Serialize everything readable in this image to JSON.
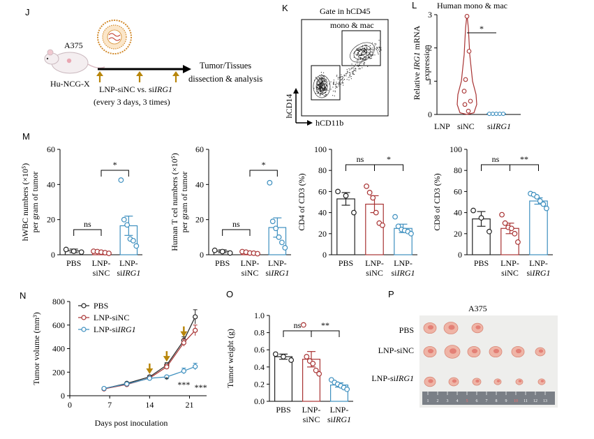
{
  "panels": {
    "J": {
      "letter": "J",
      "mouse_label": "A375",
      "strain": "Hu-NCG-X",
      "treatment": "LNP-siNC vs. siIRG1",
      "treatment_a": "LNP-siNC vs. si",
      "treatment_gene": "IRG1",
      "schedule": "(every 3 days, 3 times)",
      "outcome_1": "Tumor/Tissues",
      "outcome_2": "dissection & analysis"
    },
    "K": {
      "letter": "K",
      "title": "Gate in hCD45",
      "gate_label": "mono & mac",
      "ylabel": "hCD14",
      "xlabel": "hCD11b"
    },
    "L": {
      "letter": "L",
      "title": "Human mono & mac",
      "ylabel_1": "Relative",
      "ylabel_gene": "IRG1",
      "ylabel_2": "mRNA",
      "ylabel_3": "expression",
      "xgroup_prefix": "LNP",
      "xcat_1": "siNC",
      "xcat_2_prefix": "si",
      "xcat_2_gene": "IRG1",
      "sig": "*"
    },
    "M": {
      "letter": "M"
    },
    "N": {
      "letter": "N"
    },
    "O": {
      "letter": "O"
    },
    "P": {
      "letter": "P",
      "title": "A375",
      "row_1": "PBS",
      "row_2": "LNP-siNC",
      "row_3_prefix": "LNP-si",
      "row_3_gene": "IRG1",
      "ruler_ticks": [
        "1",
        "2",
        "3",
        "4",
        "5",
        "6",
        "7",
        "8",
        "9",
        "10",
        "11",
        "12",
        "13"
      ]
    }
  },
  "colors": {
    "pbs": "#222222",
    "sinc": "#a83232",
    "siirg1": "#3d8fbf",
    "arrow": "#b8860b"
  },
  "chart_data": [
    {
      "id": "L",
      "type": "violin",
      "categories": [
        "siNC",
        "siIRG1"
      ],
      "ylim": [
        0,
        3
      ],
      "yticks": [
        0,
        1,
        2,
        3
      ],
      "points": [
        [
          2.95,
          1.9,
          1.05,
          0.7,
          0.4,
          0.3,
          0.1
        ],
        [
          0.02,
          0.02,
          0.02,
          0.02,
          0.02
        ]
      ]
    },
    {
      "id": "M1",
      "type": "bar",
      "ylabel_1": "hWBC numbers (×10⁵)",
      "ylabel_2": "per gram of tumor",
      "categories": [
        "PBS",
        "LNP-siNC",
        "LNP-siIRG1"
      ],
      "means": [
        2.2,
        1.5,
        16.5
      ],
      "sem": [
        1.0,
        0.5,
        5.5
      ],
      "points": [
        [
          3.0,
          2.0,
          1.5
        ],
        [
          2.0,
          1.8,
          1.5,
          1.2,
          0.8
        ],
        [
          42.5,
          20.0,
          17.0,
          9.0,
          8.0,
          5.0
        ]
      ],
      "ylim": [
        0,
        60
      ],
      "yticks": [
        0,
        20,
        40,
        60
      ],
      "brackets": [
        {
          "from": 0,
          "to": 1,
          "label": "ns"
        },
        {
          "from": 1,
          "to": 2,
          "label": "*"
        }
      ]
    },
    {
      "id": "M2",
      "type": "bar",
      "ylabel_1": "Human T cel numbers (×10⁵)",
      "ylabel_2": "per gram of tumor",
      "categories": [
        "PBS",
        "LNP-siNC",
        "LNP-siIRG1"
      ],
      "means": [
        2.0,
        1.2,
        15.5
      ],
      "sem": [
        0.8,
        0.5,
        5.5
      ],
      "points": [
        [
          2.5,
          1.8,
          1.0
        ],
        [
          1.8,
          1.5,
          1.0,
          0.9,
          0.6
        ],
        [
          41.0,
          19.0,
          15.0,
          10.0,
          7.0,
          4.0
        ]
      ],
      "ylim": [
        0,
        60
      ],
      "yticks": [
        0,
        20,
        40,
        60
      ],
      "brackets": [
        {
          "from": 0,
          "to": 1,
          "label": "ns"
        },
        {
          "from": 1,
          "to": 2,
          "label": "*"
        }
      ]
    },
    {
      "id": "M3",
      "type": "bar",
      "ylabel_1": "CD4 of CD3 (%)",
      "ylabel_2": "",
      "categories": [
        "PBS",
        "LNP-siNC",
        "LNP-siIRG1"
      ],
      "means": [
        53,
        48,
        25
      ],
      "sem": [
        6,
        8,
        4
      ],
      "points": [
        [
          60,
          56,
          40
        ],
        [
          65,
          59,
          54,
          40,
          30,
          28
        ],
        [
          36,
          27,
          24,
          23,
          22,
          20
        ]
      ],
      "ylim": [
        0,
        100
      ],
      "yticks": [
        0,
        20,
        40,
        60,
        80,
        100
      ],
      "brackets": [
        {
          "from": 0,
          "to": 1,
          "label": "ns"
        },
        {
          "from": 1,
          "to": 2,
          "label": "*"
        }
      ]
    },
    {
      "id": "M4",
      "type": "bar",
      "ylabel_1": "CD8 of CD3 (%)",
      "ylabel_2": "",
      "categories": [
        "PBS",
        "LNP-siNC",
        "LNP-siIRG1"
      ],
      "means": [
        34,
        25,
        51
      ],
      "sem": [
        7,
        5,
        3
      ],
      "points": [
        [
          42,
          35,
          22
        ],
        [
          38,
          30,
          26,
          25,
          20,
          12
        ],
        [
          58,
          57,
          55,
          51,
          48,
          44
        ]
      ],
      "ylim": [
        0,
        100
      ],
      "yticks": [
        0,
        20,
        40,
        60,
        80,
        100
      ],
      "brackets": [
        {
          "from": 0,
          "to": 1,
          "label": "ns"
        },
        {
          "from": 1,
          "to": 2,
          "label": "**"
        }
      ]
    },
    {
      "id": "N",
      "type": "line",
      "ylabel": "Tumor volume (mm³)",
      "xlabel": "Days post inoculation",
      "x": [
        6,
        10,
        14,
        17,
        20,
        22
      ],
      "series": [
        {
          "name": "PBS",
          "values": [
            60,
            105,
            160,
            260,
            470,
            670
          ],
          "err": [
            5,
            8,
            12,
            20,
            30,
            60
          ]
        },
        {
          "name": "LNP-siNC",
          "values": [
            58,
            95,
            150,
            245,
            450,
            555
          ],
          "err": [
            5,
            8,
            10,
            18,
            30,
            45
          ]
        },
        {
          "name": "LNP-siIRG1",
          "values": [
            62,
            100,
            148,
            160,
            210,
            248
          ],
          "err": [
            5,
            8,
            10,
            12,
            25,
            28
          ]
        }
      ],
      "legend": [
        "PBS",
        "LNP-siNC",
        "LNP-si"
      ],
      "legend_gene": "IRG1",
      "xlim": [
        0,
        24
      ],
      "ylim": [
        0,
        800
      ],
      "xticks": [
        0,
        7,
        14,
        21
      ],
      "yticks": [
        0,
        200,
        400,
        600,
        800
      ],
      "injection_days": [
        14,
        17,
        20
      ],
      "sig": [
        {
          "x": 17,
          "label": "*"
        },
        {
          "x": 20,
          "label": "***"
        },
        {
          "x": 22,
          "label": "***"
        }
      ]
    },
    {
      "id": "O",
      "type": "bar",
      "ylabel_1": "Tumor weight (g)",
      "ylabel_2": "",
      "categories": [
        "PBS",
        "LNP-siNC",
        "LNP-siIRG1"
      ],
      "means": [
        0.52,
        0.49,
        0.19
      ],
      "sem": [
        0.03,
        0.09,
        0.025
      ],
      "points": [
        [
          0.55,
          0.52,
          0.48
        ],
        [
          0.89,
          0.52,
          0.47,
          0.44,
          0.36,
          0.32
        ],
        [
          0.25,
          0.22,
          0.2,
          0.18,
          0.16,
          0.14
        ]
      ],
      "ylim": [
        0,
        1.0
      ],
      "yticks": [
        0.0,
        0.2,
        0.4,
        0.6,
        0.8,
        1.0
      ],
      "brackets": [
        {
          "from": 0,
          "to": 1,
          "label": "ns"
        },
        {
          "from": 1,
          "to": 2,
          "label": "**"
        }
      ]
    }
  ]
}
